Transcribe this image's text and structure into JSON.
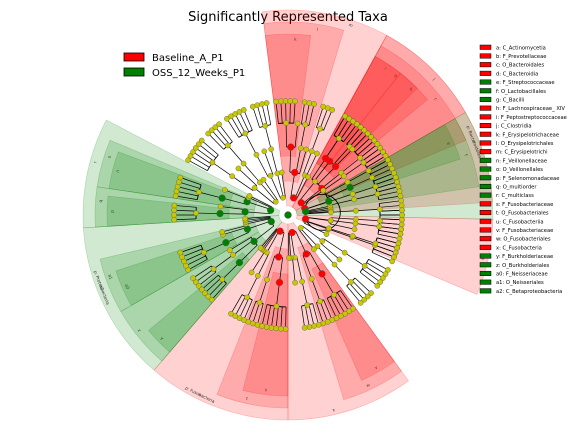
{
  "chart_data": {
    "type": "cladogram",
    "title": "Significantly Represented Taxa",
    "colors": {
      "Baseline_A_P1": "#ff0000",
      "OSS_12_Weeks_P1": "#008000",
      "node_default": "#c8c800"
    },
    "groups": [
      {
        "name": "Baseline_A_P1",
        "color": "#ff0000"
      },
      {
        "name": "OSS_12_Weeks_P1",
        "color": "#008000"
      }
    ],
    "clades": [
      {
        "key": "a",
        "label": "C_Actinomycetia",
        "group": "Baseline_A_P1"
      },
      {
        "key": "b",
        "label": "F_Prevotellaceae",
        "group": "Baseline_A_P1"
      },
      {
        "key": "c",
        "label": "O_Bacteroidales",
        "group": "Baseline_A_P1"
      },
      {
        "key": "d",
        "label": "C_Bacteroidia",
        "group": "Baseline_A_P1"
      },
      {
        "key": "e",
        "label": "F_Streptococcaceae",
        "group": "OSS_12_Weeks_P1"
      },
      {
        "key": "f",
        "label": "O_Lactobacillales",
        "group": "OSS_12_Weeks_P1"
      },
      {
        "key": "g",
        "label": "C_Bacilli",
        "group": "OSS_12_Weeks_P1"
      },
      {
        "key": "h",
        "label": "F_Lachnospiraceae_ XIV",
        "group": "Baseline_A_P1"
      },
      {
        "key": "i",
        "label": "F_Peptostreptococcaceae",
        "group": "Baseline_A_P1"
      },
      {
        "key": "j",
        "label": "C_Clostridia",
        "group": "Baseline_A_P1"
      },
      {
        "key": "k",
        "label": "F_Erysipelotrichaceae",
        "group": "Baseline_A_P1"
      },
      {
        "key": "l",
        "label": "O_Erysipelotrichales",
        "group": "Baseline_A_P1"
      },
      {
        "key": "m",
        "label": "C_Erysipelotrichi",
        "group": "Baseline_A_P1"
      },
      {
        "key": "n",
        "label": "F_Veillonellaceae",
        "group": "OSS_12_Weeks_P1"
      },
      {
        "key": "o",
        "label": "O_Veillonellales",
        "group": "OSS_12_Weeks_P1"
      },
      {
        "key": "p",
        "label": "F_Selenomonadaceae",
        "group": "OSS_12_Weeks_P1"
      },
      {
        "key": "q",
        "label": "O_multiorder",
        "group": "OSS_12_Weeks_P1"
      },
      {
        "key": "r",
        "label": "C_multiclass",
        "group": "OSS_12_Weeks_P1"
      },
      {
        "key": "s",
        "label": "F_Fusobacteriaceae",
        "group": "Baseline_A_P1"
      },
      {
        "key": "t",
        "label": "O_Fusobacteriales",
        "group": "Baseline_A_P1"
      },
      {
        "key": "u",
        "label": "C_Fusobacteriia",
        "group": "Baseline_A_P1"
      },
      {
        "key": "v",
        "label": "F_Fusobacteriaceae",
        "group": "Baseline_A_P1"
      },
      {
        "key": "w",
        "label": "O_Fusobacteriales",
        "group": "Baseline_A_P1"
      },
      {
        "key": "x",
        "label": "C_Fusobacteria",
        "group": "Baseline_A_P1"
      },
      {
        "key": "y",
        "label": "F_Burkholderiaceae",
        "group": "OSS_12_Weeks_P1"
      },
      {
        "key": "z",
        "label": "O_Burkholderiales",
        "group": "OSS_12_Weeks_P1"
      },
      {
        "key": "a0",
        "label": "F_Neisseriaceae",
        "group": "OSS_12_Weeks_P1"
      },
      {
        "key": "a1",
        "label": "O_Neisseriales",
        "group": "OSS_12_Weeks_P1"
      },
      {
        "key": "a2",
        "label": "C_Betaproteobacteria",
        "group": "OSS_12_Weeks_P1"
      }
    ],
    "phylum_labels": [
      {
        "text": "p: Bacteroidetes",
        "group": "Baseline_A_P1"
      },
      {
        "text": "p: Fusobacteria",
        "group": "Baseline_A_P1"
      },
      {
        "text": "p: Proteobacteria",
        "group": "OSS_12_Weeks_P1"
      }
    ]
  }
}
